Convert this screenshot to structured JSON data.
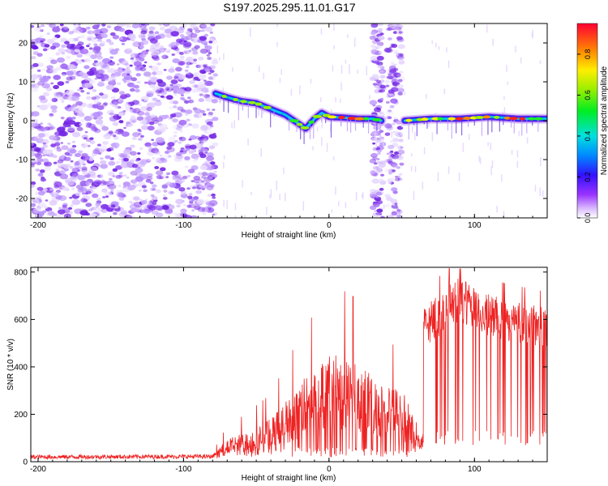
{
  "title": "S197.2025.295.11.01.G17",
  "chart_data": [
    {
      "type": "heatmap",
      "xlabel": "Height of straight line (km)",
      "ylabel": "Frequency (Hz)",
      "xlim": [
        -205,
        150
      ],
      "ylim": [
        -25,
        25
      ],
      "xticks": [
        -200,
        -100,
        0,
        100
      ],
      "xtick_labels": [
        "-200",
        "-100",
        "0",
        "100"
      ],
      "yticks": [
        -20,
        -10,
        0,
        10,
        20
      ],
      "ytick_labels": [
        "-20",
        "-10",
        "0",
        "10",
        "20"
      ],
      "colorbar": {
        "label": "Normalized spectral amplitude",
        "range": [
          0,
          0.95
        ],
        "ticks": [
          0,
          0.2,
          0.4,
          0.6,
          0.8
        ],
        "tick_labels": [
          "0.0",
          "0.2",
          "0.4",
          "0.6",
          "0.8"
        ]
      },
      "ridge": [
        {
          "x": -78,
          "y": 7
        },
        {
          "x": -70,
          "y": 6
        },
        {
          "x": -60,
          "y": 5
        },
        {
          "x": -50,
          "y": 4.5
        },
        {
          "x": -40,
          "y": 3
        },
        {
          "x": -30,
          "y": 1.5
        },
        {
          "x": -22,
          "y": -0.5
        },
        {
          "x": -16,
          "y": -2
        },
        {
          "x": -10,
          "y": 0.5
        },
        {
          "x": -5,
          "y": 2
        },
        {
          "x": 0,
          "y": 1
        },
        {
          "x": 10,
          "y": 0.8
        },
        {
          "x": 20,
          "y": 0.5
        },
        {
          "x": 30,
          "y": 0.5
        },
        {
          "x": 36,
          "y": 0
        },
        {
          "x": 52,
          "y": 0
        },
        {
          "x": 70,
          "y": 0.5
        },
        {
          "x": 90,
          "y": 0.5
        },
        {
          "x": 110,
          "y": 1
        },
        {
          "x": 130,
          "y": 0.5
        },
        {
          "x": 150,
          "y": 0.5
        }
      ]
    },
    {
      "type": "line",
      "xlabel": "Height of straight line (km)",
      "ylabel": "SNR (10 * v/v)",
      "xlim": [
        -205,
        150
      ],
      "ylim": [
        0,
        820
      ],
      "xticks": [
        -200,
        -100,
        0,
        100
      ],
      "xtick_labels": [
        "-200",
        "-100",
        "0",
        "100"
      ],
      "yticks": [
        0,
        200,
        400,
        600,
        800
      ],
      "ytick_labels": [
        "0",
        "200",
        "400",
        "600",
        "800"
      ],
      "series": [
        {
          "name": "SNR",
          "color": "#ee2222",
          "envelope": [
            {
              "x": -205,
              "y": 20
            },
            {
              "x": -80,
              "y": 22
            },
            {
              "x": -70,
              "y": 80
            },
            {
              "x": -60,
              "y": 100
            },
            {
              "x": -40,
              "y": 150
            },
            {
              "x": -20,
              "y": 280
            },
            {
              "x": -10,
              "y": 330
            },
            {
              "x": 0,
              "y": 380
            },
            {
              "x": 10,
              "y": 380
            },
            {
              "x": 20,
              "y": 360
            },
            {
              "x": 30,
              "y": 300
            },
            {
              "x": 40,
              "y": 260
            },
            {
              "x": 50,
              "y": 260
            },
            {
              "x": 60,
              "y": 150
            },
            {
              "x": 65,
              "y": 550
            },
            {
              "x": 80,
              "y": 620
            },
            {
              "x": 90,
              "y": 660
            },
            {
              "x": 100,
              "y": 620
            },
            {
              "x": 120,
              "y": 580
            },
            {
              "x": 150,
              "y": 550
            }
          ]
        }
      ]
    }
  ]
}
